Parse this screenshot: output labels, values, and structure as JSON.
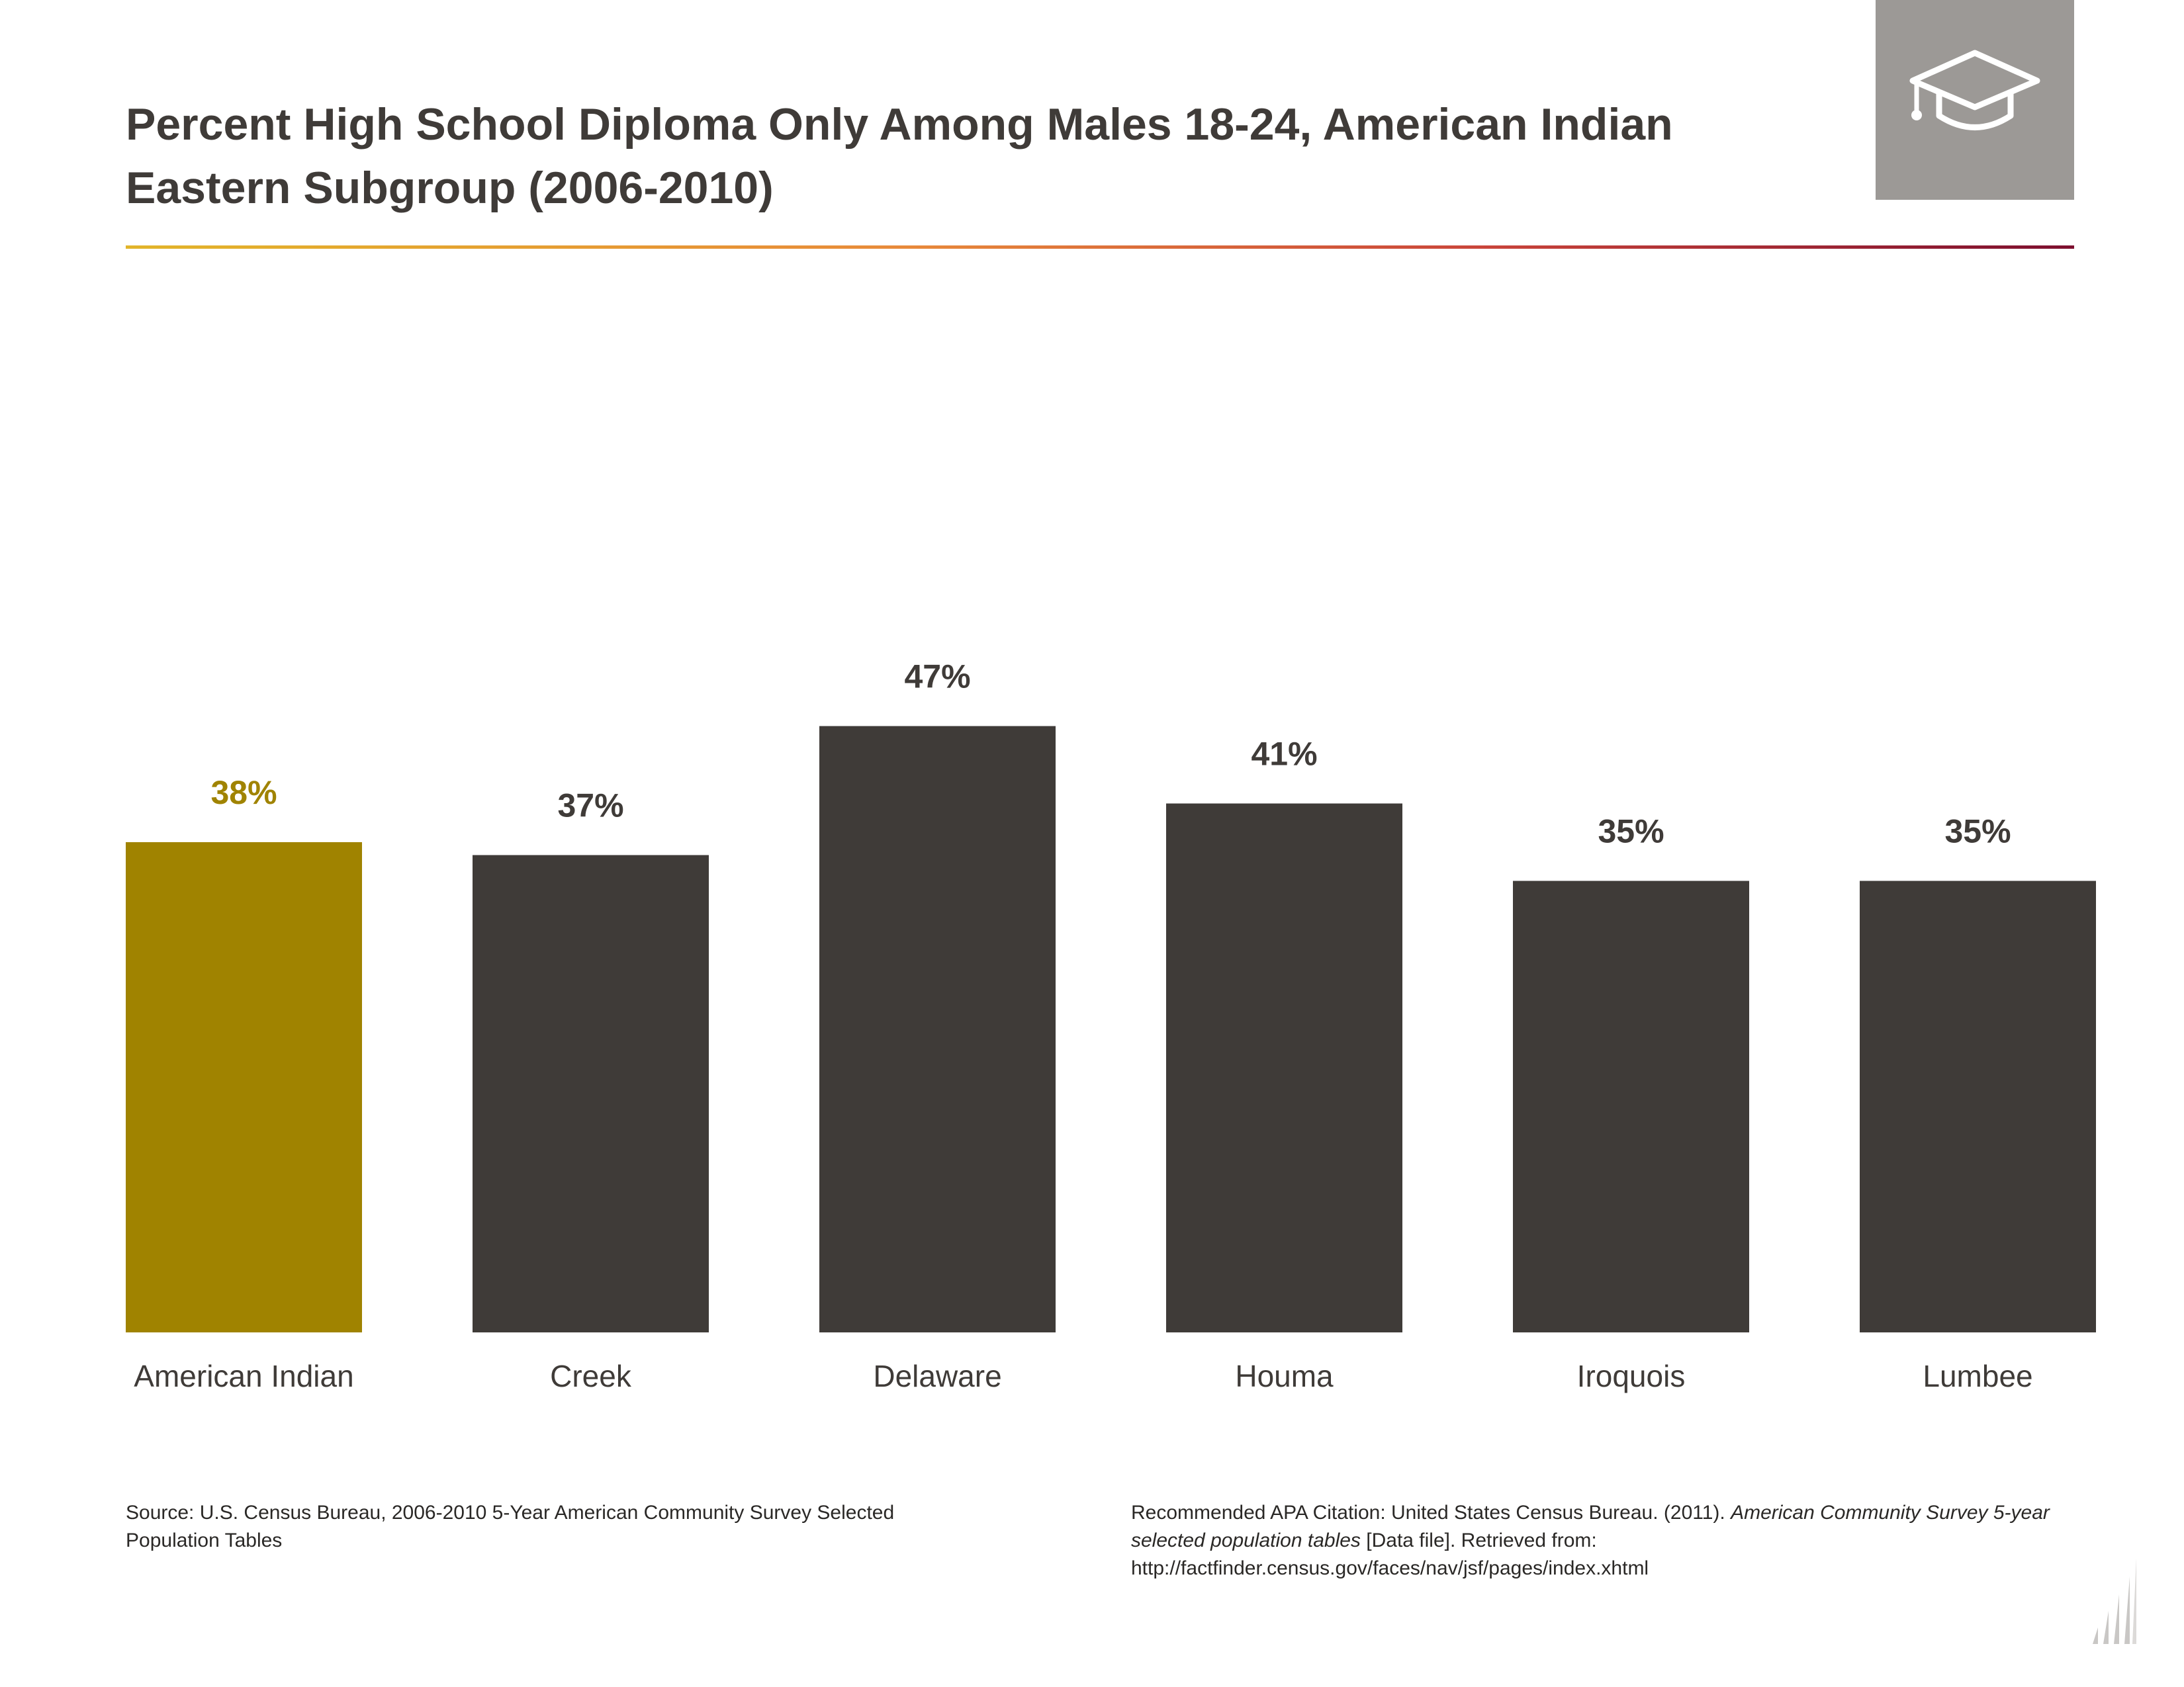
{
  "header": {
    "title_line1": "Percent High School Diploma Only Among Males 18-24, American Indian",
    "title_line2": "Eastern Subgroup (2006-2010)",
    "icon": "graduation-cap-icon"
  },
  "colors": {
    "highlight": "#a08300",
    "bar": "#3f3b38",
    "icon_box": "#9c9996",
    "rule_gradient": [
      "#e2b52a",
      "#e88a3a",
      "#c9443a",
      "#7d0f2f"
    ]
  },
  "chart_data": {
    "type": "bar",
    "title": "Percent High School Diploma Only Among Males 18-24, American Indian Eastern Subgroup (2006-2010)",
    "categories": [
      "American Indian",
      "Creek",
      "Delaware",
      "Houma",
      "Iroquois",
      "Lumbee"
    ],
    "values": [
      38,
      37,
      47,
      41,
      35,
      35
    ],
    "value_labels": [
      "38%",
      "37%",
      "47%",
      "41%",
      "35%",
      "35%"
    ],
    "highlight_index": 0,
    "ylim": [
      0,
      100
    ],
    "grid": false,
    "xlabel": "",
    "ylabel": ""
  },
  "footer": {
    "source": "Source: U.S. Census Bureau, 2006-2010 5-Year American Community Survey Selected Population Tables",
    "citation_prefix": "Recommended APA Citation: United States Census Bureau. (2011). ",
    "citation_italic": "American Community Survey 5-year selected population tables",
    "citation_suffix": " [Data file]. Retrieved from: http://factfinder.census.gov/faces/nav/jsf/pages/index.xhtml"
  }
}
